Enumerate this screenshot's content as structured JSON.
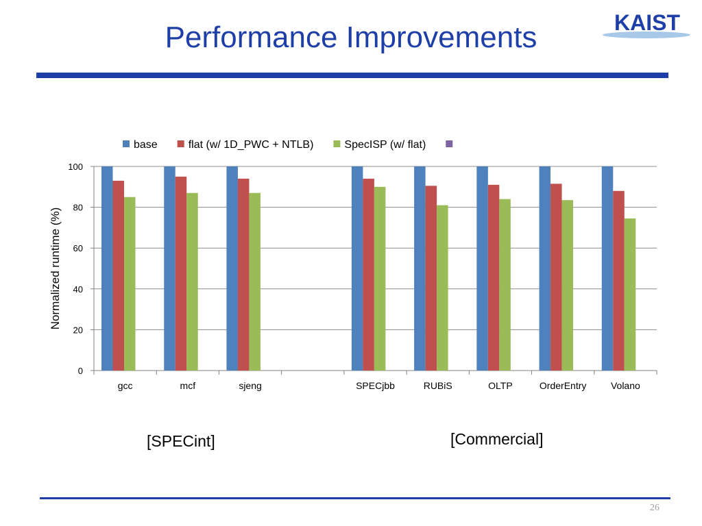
{
  "slide": {
    "title": "Performance Improvements",
    "page_number": "26",
    "logo_text": "KAIST",
    "group_labels": [
      "[SPECint]",
      "[Commercial]"
    ]
  },
  "colors": {
    "title": "#1f3fa8",
    "rule": "#1f3fa8",
    "base": "#4f81bd",
    "flat": "#c0504d",
    "specisp": "#9bbb59",
    "blank_series": "#8064a2"
  },
  "chart_data": {
    "type": "bar",
    "title": "",
    "xlabel": "",
    "ylabel": "Normalized runtime (%)",
    "ylim": [
      0,
      100
    ],
    "yticks": [
      0,
      20,
      40,
      60,
      80,
      100
    ],
    "grid": true,
    "legend_position": "top",
    "categories": [
      "gcc",
      "mcf",
      "sjeng",
      "",
      "SPECjbb",
      "RUBiS",
      "OLTP",
      "OrderEntry",
      "Volano"
    ],
    "series": [
      {
        "name": "base",
        "color": "#4f81bd",
        "values": [
          100,
          100,
          100,
          null,
          100,
          100,
          100,
          100,
          100
        ]
      },
      {
        "name": "flat (w/ 1D_PWC + NTLB)",
        "color": "#c0504d",
        "values": [
          93,
          95,
          94,
          null,
          94,
          90.5,
          91,
          91.5,
          88
        ]
      },
      {
        "name": "SpecISP (w/ flat)",
        "color": "#9bbb59",
        "values": [
          85,
          87,
          87,
          null,
          90,
          81,
          84,
          83.5,
          74.5
        ]
      },
      {
        "name": "",
        "color": "#8064a2",
        "values": [
          null,
          null,
          null,
          null,
          null,
          null,
          null,
          null,
          null
        ]
      }
    ]
  }
}
